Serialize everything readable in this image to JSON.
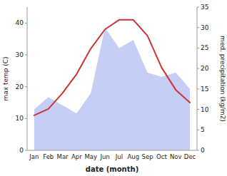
{
  "chart_data": {
    "type": "line",
    "xlabel": "date (month)",
    "ylabel": "max temp (C)",
    "y2label": "med. precipitation (kg/m2)",
    "categories": [
      "Jan",
      "Feb",
      "Mar",
      "Apr",
      "May",
      "Jun",
      "Jul",
      "Aug",
      "Sep",
      "Oct",
      "Nov",
      "Dec"
    ],
    "series": [
      {
        "type": "area",
        "axis": "y2",
        "color": "#c5cff5",
        "values": [
          10,
          13,
          11,
          9,
          14,
          30,
          25,
          27,
          19,
          18,
          19,
          15
        ]
      },
      {
        "type": "line",
        "color": "#cc3333",
        "values": [
          11,
          13,
          18,
          24,
          32,
          38,
          41,
          41,
          36,
          26,
          19,
          15
        ]
      }
    ],
    "ylim": [
      0,
      45
    ],
    "yticks": [
      0,
      10,
      20,
      30,
      40
    ],
    "y2lim": [
      0,
      35
    ],
    "y2ticks": [
      0,
      5,
      10,
      15,
      20,
      25,
      30,
      35
    ]
  }
}
